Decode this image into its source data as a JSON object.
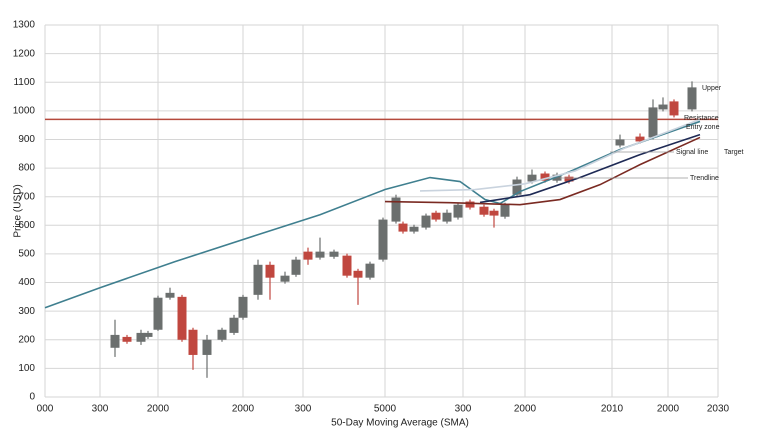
{
  "chart_data": {
    "type": "candlestick",
    "x_label": "50-Day Moving Average (SMA)",
    "y_label": "Price (USD)",
    "xlim": [
      0,
      673
    ],
    "ylim": [
      0,
      1300
    ],
    "yticks": [
      0,
      100,
      200,
      300,
      400,
      500,
      600,
      700,
      800,
      900,
      1000,
      1100,
      1200,
      1300
    ],
    "xticks": [
      {
        "value": 0,
        "label": "000"
      },
      {
        "value": 55,
        "label": "300"
      },
      {
        "value": 113,
        "label": "2000"
      },
      {
        "value": 198,
        "label": "2000"
      },
      {
        "value": 258,
        "label": "300"
      },
      {
        "value": 340,
        "label": "5000"
      },
      {
        "value": 418,
        "label": "300"
      },
      {
        "value": 480,
        "label": "2000"
      },
      {
        "value": 567,
        "label": "2010"
      },
      {
        "value": 623,
        "label": "2000"
      },
      {
        "value": 673,
        "label": "2030"
      }
    ],
    "grid": true,
    "up_color": "#6b6f6e",
    "down_color": "#c0473f",
    "candles": {
      "x": [
        70,
        82,
        96,
        103,
        113,
        125,
        137,
        148,
        162,
        177,
        189,
        198,
        213,
        225,
        240,
        251,
        263,
        275,
        289,
        302,
        313,
        325,
        338,
        351,
        358,
        369,
        381,
        391,
        402,
        413,
        425,
        439,
        449,
        460,
        472,
        487,
        500,
        512,
        524,
        575,
        595,
        608,
        618,
        629,
        647
      ],
      "open": [
        172,
        210,
        193,
        210,
        235,
        347,
        350,
        235,
        147,
        200,
        224,
        277,
        357,
        462,
        403,
        427,
        508,
        487,
        490,
        494,
        441,
        417,
        480,
        613,
        606,
        578,
        592,
        644,
        613,
        627,
        683,
        665,
        651,
        630,
        707,
        753,
        781,
        756,
        770,
        879,
        910,
        907,
        1005,
        1033,
        1005
      ],
      "high": [
        270,
        217,
        235,
        231,
        354,
        382,
        357,
        242,
        217,
        242,
        287,
        357,
        480,
        473,
        438,
        490,
        522,
        557,
        515,
        501,
        448,
        473,
        627,
        707,
        613,
        602,
        641,
        651,
        655,
        679,
        690,
        672,
        658,
        679,
        770,
        795,
        788,
        784,
        777,
        917,
        921,
        1040,
        1047,
        1040,
        1103
      ],
      "low": [
        140,
        186,
        182,
        203,
        231,
        340,
        193,
        95,
        67,
        193,
        217,
        270,
        340,
        340,
        396,
        420,
        462,
        480,
        483,
        417,
        322,
        410,
        473,
        606,
        571,
        571,
        585,
        613,
        606,
        620,
        655,
        630,
        592,
        623,
        700,
        746,
        749,
        749,
        746,
        872,
        886,
        900,
        998,
        977,
        998
      ],
      "close": [
        217,
        193,
        224,
        224,
        347,
        364,
        200,
        147,
        200,
        235,
        277,
        350,
        462,
        417,
        424,
        480,
        480,
        508,
        508,
        424,
        417,
        466,
        620,
        697,
        578,
        595,
        634,
        620,
        644,
        672,
        662,
        637,
        634,
        672,
        760,
        777,
        756,
        777,
        753,
        900,
        893,
        1012,
        1022,
        984,
        1082
      ]
    },
    "series": [
      {
        "color": "#3f7f8f",
        "x": [
          0,
          55,
          130,
          210,
          275,
          340,
          385,
          415,
          440,
          455,
          475,
          525,
          575,
          655
        ],
        "values": [
          312,
          382,
          473,
          564,
          637,
          725,
          767,
          753,
          690,
          676,
          718,
          788,
          865,
          963
        ]
      },
      {
        "color": "#c9d3de",
        "x": [
          375,
          430,
          480,
          530,
          580,
          655
        ],
        "values": [
          720,
          725,
          745,
          790,
          870,
          970
        ]
      },
      {
        "color": "#1e2a55",
        "x": [
          435,
          485,
          535,
          595,
          655
        ],
        "values": [
          680,
          707,
          767,
          847,
          917
        ]
      },
      {
        "color": "#7a2a22",
        "x": [
          340,
          405,
          475,
          515,
          555,
          595,
          655
        ],
        "values": [
          683,
          679,
          672,
          690,
          742,
          812,
          907
        ]
      }
    ],
    "hline": {
      "value": 970,
      "color": "#b5493c"
    },
    "annotations": [
      {
        "text": "Upper",
        "color": "#444"
      },
      {
        "text": "Resistance",
        "color": "#444"
      },
      {
        "text": "Entry zone",
        "color": "#444"
      },
      {
        "text": "Signal line",
        "color": "#444"
      },
      {
        "text": "Target",
        "color": "#b5493c"
      },
      {
        "text": "Trendline",
        "color": "#444"
      }
    ]
  }
}
